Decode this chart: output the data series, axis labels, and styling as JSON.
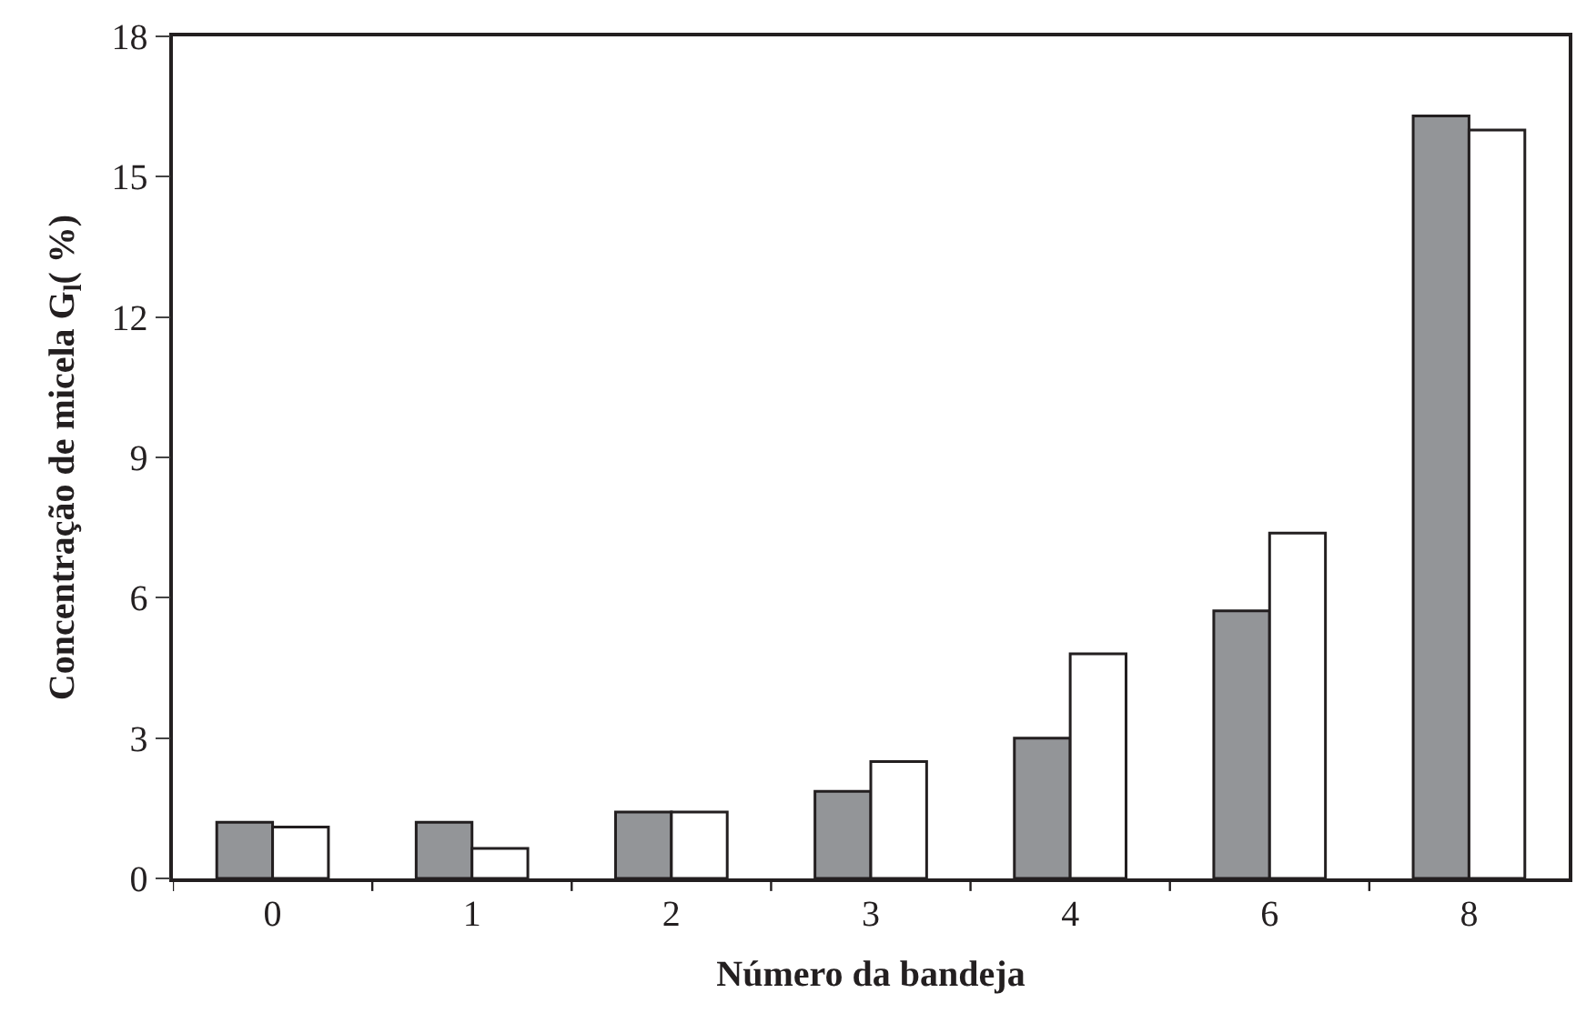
{
  "chart_data": {
    "type": "bar",
    "xlabel": "Número da bandeja",
    "ylabel": "Concentração de micela G$_{l}$( %)",
    "categories": [
      "0",
      "1",
      "2",
      "3",
      "4",
      "6",
      "8"
    ],
    "series": [
      {
        "color": "#939598",
        "values": [
          1.2,
          1.2,
          1.42,
          1.86,
          3.0,
          5.72,
          16.3
        ]
      },
      {
        "color": "#ffffff",
        "values": [
          1.1,
          0.64,
          1.42,
          2.5,
          4.8,
          7.38,
          16.0
        ]
      }
    ],
    "ylim": [
      0,
      18
    ],
    "yticks": [
      0,
      3,
      6,
      9,
      12,
      15,
      18
    ]
  }
}
